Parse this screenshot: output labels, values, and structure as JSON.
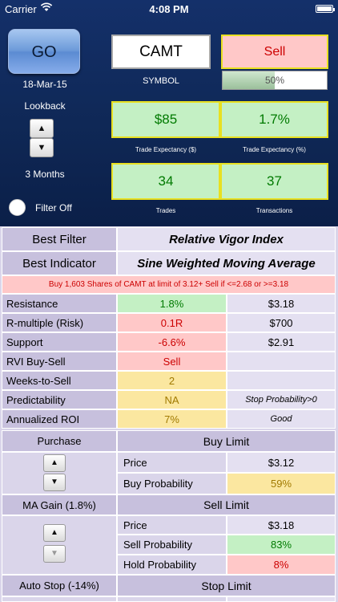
{
  "status_bar": {
    "carrier": "Carrier",
    "time": "4:08 PM"
  },
  "controls": {
    "go_label": "GO",
    "date": "18-Mar-15",
    "lookback_label": "Lookback",
    "lookback_value": "3 Months",
    "filter_label": "Filter Off"
  },
  "symbol": {
    "value": "CAMT",
    "label": "SYMBOL"
  },
  "signal": {
    "value": "Sell",
    "progress_text": "50%",
    "progress_fraction": 0.5
  },
  "metrics": [
    {
      "value": "$85",
      "label": "Trade Expectancy ($)"
    },
    {
      "value": "1.7%",
      "label": "Trade Expectancy (%)"
    },
    {
      "value": "34",
      "label": "Trades"
    },
    {
      "value": "37",
      "label": "Transactions"
    }
  ],
  "best": {
    "filter_label": "Best Filter",
    "filter_value": "Relative Vigor Index",
    "indicator_label": "Best Indicator",
    "indicator_value": "Sine Weighted Moving Average"
  },
  "note": "Buy 1,603 Shares of CAMT at limit of 3.12+ Sell if <=2.68 or >=3.18",
  "rows": [
    {
      "label": "Resistance",
      "value": "1.8%",
      "extra": "$3.18"
    },
    {
      "label": "R-multiple (Risk)",
      "value": "0.1R",
      "extra": "$700"
    },
    {
      "label": "Support",
      "value": "-6.6%",
      "extra": "$2.91"
    },
    {
      "label": "RVI Buy-Sell",
      "value": "Sell",
      "extra": ""
    },
    {
      "label": "Weeks-to-Sell",
      "value": "2",
      "extra": ""
    },
    {
      "label": "Predictability",
      "value": "NA",
      "extra": "Stop Probability>0"
    },
    {
      "label": "Annualized ROI",
      "value": "7%",
      "extra": "Good"
    }
  ],
  "purchase": {
    "header": "Purchase",
    "limit_header": "Buy Limit",
    "price_label": "Price",
    "price": "$3.12",
    "prob_label": "Buy Probability",
    "prob": "59%"
  },
  "ma_gain": {
    "header": "MA Gain (1.8%)",
    "limit_header": "Sell Limit",
    "price_label": "Price",
    "price": "$3.18",
    "sell_prob_label": "Sell Probability",
    "sell_prob": "83%",
    "hold_prob_label": "Hold Probability",
    "hold_prob": "8%"
  },
  "auto_stop": {
    "header": "Auto Stop (-14%)",
    "limit_header": "Stop Limit"
  },
  "icons": {
    "up": "▲",
    "down": "▼"
  }
}
